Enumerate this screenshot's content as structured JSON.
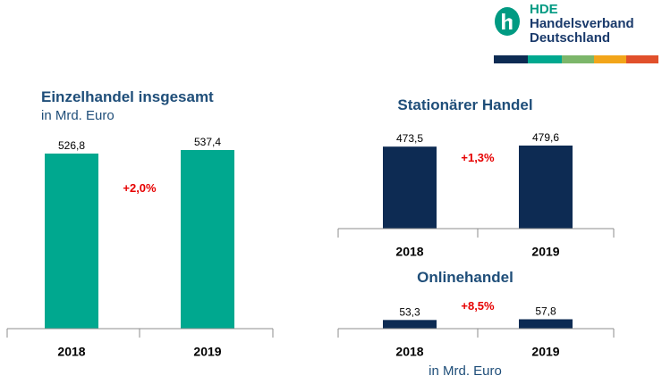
{
  "logo": {
    "line1": "HDE",
    "line2": "Handelsverband",
    "line3": "Deutschland",
    "stripe_colors": [
      "#0d2b53",
      "#1a3a6b",
      "#009a82",
      "#7cb66a",
      "#f2a51a",
      "#e1502b"
    ]
  },
  "colors": {
    "teal": "#00a88f",
    "navy": "#0d2b53",
    "growth": "#e60000",
    "title": "#1f4e79"
  },
  "chart_data": [
    {
      "type": "bar",
      "title": "Einzelhandel insgesamt",
      "subtitle": "in Mrd. Euro",
      "categories": [
        "2018",
        "2019"
      ],
      "values": [
        526.8,
        537.4
      ],
      "value_labels": [
        "526,8",
        "537,4"
      ],
      "growth_label": "+2,0%",
      "color": "#00a88f"
    },
    {
      "type": "bar",
      "title": "Stationärer Handel",
      "categories": [
        "2018",
        "2019"
      ],
      "values": [
        473.5,
        479.6
      ],
      "value_labels": [
        "473,5",
        "479,6"
      ],
      "growth_label": "+1,3%",
      "color": "#0d2b53"
    },
    {
      "type": "bar",
      "title": "Onlinehandel",
      "categories": [
        "2018",
        "2019"
      ],
      "values": [
        53.3,
        57.8
      ],
      "value_labels": [
        "53,3",
        "57,8"
      ],
      "growth_label": "+8,5%",
      "color": "#0d2b53"
    }
  ],
  "unit_note": "in Mrd. Euro"
}
